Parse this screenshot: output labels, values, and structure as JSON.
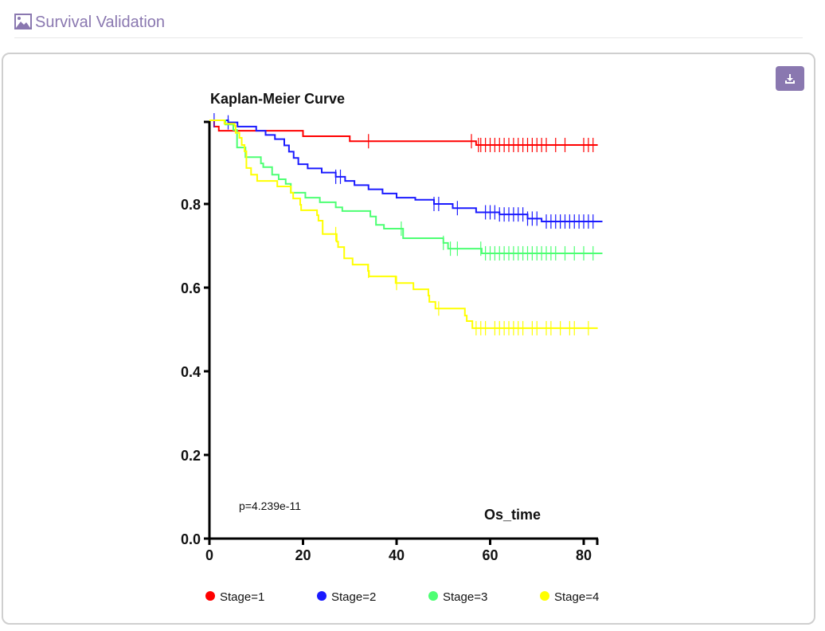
{
  "header": {
    "title": "Survival Validation",
    "icon": "image-icon"
  },
  "toolbar": {
    "download_icon": "download-icon"
  },
  "chart_data": {
    "type": "line",
    "title": "Kaplan-Meier Curve",
    "xlabel": "Os_time",
    "ylabel": "",
    "xlim": [
      0,
      83
    ],
    "ylim": [
      0,
      1
    ],
    "xticks": [
      "0",
      "20",
      "40",
      "60",
      "80"
    ],
    "yticks": [
      "0.0",
      "0.2",
      "0.4",
      "0.6",
      "0.8"
    ],
    "annotation": "p=4.239e-11",
    "legend_position": "bottom",
    "grid": false,
    "series": [
      {
        "name": "Stage=1",
        "color": "#ff0000",
        "steps": [
          [
            0,
            1
          ],
          [
            1,
            0.985
          ],
          [
            2,
            0.975
          ],
          [
            20,
            0.962
          ],
          [
            30,
            0.95
          ],
          [
            57,
            0.941
          ]
        ],
        "end": 83,
        "censors": [
          34,
          56,
          57.5,
          58,
          59,
          60,
          61,
          62,
          63,
          64,
          65,
          66,
          67,
          68,
          69,
          70,
          71,
          72,
          74,
          76,
          80,
          81,
          82
        ]
      },
      {
        "name": "Stage=2",
        "color": "#1a1aff",
        "steps": [
          [
            0,
            1
          ],
          [
            4,
            0.995
          ],
          [
            6,
            0.985
          ],
          [
            10,
            0.975
          ],
          [
            12,
            0.965
          ],
          [
            14,
            0.955
          ],
          [
            16,
            0.94
          ],
          [
            17,
            0.925
          ],
          [
            18,
            0.91
          ],
          [
            19,
            0.895
          ],
          [
            21,
            0.885
          ],
          [
            24,
            0.875
          ],
          [
            27,
            0.865
          ],
          [
            29,
            0.855
          ],
          [
            31,
            0.845
          ],
          [
            34,
            0.835
          ],
          [
            37,
            0.825
          ],
          [
            40,
            0.815
          ],
          [
            44,
            0.81
          ],
          [
            48,
            0.8
          ],
          [
            52,
            0.79
          ],
          [
            57,
            0.78
          ],
          [
            62,
            0.775
          ],
          [
            68,
            0.765
          ],
          [
            71,
            0.758
          ]
        ],
        "end": 84,
        "censors": [
          1,
          4,
          27,
          28,
          48,
          49,
          53,
          59,
          60,
          61,
          62,
          63,
          64,
          65,
          66,
          67,
          68,
          69,
          70,
          72,
          73,
          74,
          75,
          76,
          77,
          78,
          79,
          80,
          81,
          82
        ]
      },
      {
        "name": "Stage=3",
        "color": "#4dff73",
        "steps": [
          [
            0,
            1
          ],
          [
            3.4,
            0.99
          ],
          [
            5.1,
            0.977
          ],
          [
            5.9,
            0.935
          ],
          [
            7.7,
            0.912
          ],
          [
            11,
            0.897
          ],
          [
            11.5,
            0.888
          ],
          [
            13.4,
            0.87
          ],
          [
            14.8,
            0.859
          ],
          [
            16.3,
            0.848
          ],
          [
            17.4,
            0.827
          ],
          [
            20.5,
            0.815
          ],
          [
            23.6,
            0.804
          ],
          [
            27,
            0.792
          ],
          [
            28.4,
            0.783
          ],
          [
            34.4,
            0.77
          ],
          [
            35.6,
            0.75
          ],
          [
            37.3,
            0.741
          ],
          [
            41.4,
            0.718
          ],
          [
            50,
            0.707
          ],
          [
            51,
            0.693
          ],
          [
            58.2,
            0.682
          ]
        ],
        "end": 84,
        "censors": [
          41,
          50,
          51.5,
          53,
          58,
          59,
          60,
          61,
          62,
          63,
          64,
          65,
          66,
          67,
          68,
          69,
          70,
          71,
          72,
          73,
          74,
          76,
          78,
          80,
          82
        ]
      },
      {
        "name": "Stage=4",
        "color": "#ffff00",
        "steps": [
          [
            0,
            1
          ],
          [
            3.2,
            0.992
          ],
          [
            5.4,
            0.987
          ],
          [
            5.6,
            0.97
          ],
          [
            6.4,
            0.958
          ],
          [
            6.9,
            0.941
          ],
          [
            7.5,
            0.926
          ],
          [
            7.9,
            0.886
          ],
          [
            8.9,
            0.87
          ],
          [
            10.2,
            0.855
          ],
          [
            14.5,
            0.842
          ],
          [
            17.4,
            0.827
          ],
          [
            17.9,
            0.813
          ],
          [
            19.4,
            0.798
          ],
          [
            19.6,
            0.785
          ],
          [
            23,
            0.773
          ],
          [
            23.3,
            0.76
          ],
          [
            24.2,
            0.728
          ],
          [
            27.2,
            0.71
          ],
          [
            27.5,
            0.697
          ],
          [
            28.8,
            0.67
          ],
          [
            30.6,
            0.655
          ],
          [
            33.9,
            0.64
          ],
          [
            34.1,
            0.627
          ],
          [
            39.8,
            0.611
          ],
          [
            43.6,
            0.596
          ],
          [
            46.8,
            0.581
          ],
          [
            47,
            0.566
          ],
          [
            48.3,
            0.55
          ],
          [
            54.6,
            0.533
          ],
          [
            55,
            0.52
          ],
          [
            56.2,
            0.503
          ]
        ],
        "end": 83,
        "censors": [
          27,
          34,
          40,
          49,
          57,
          58,
          59,
          61,
          62,
          63,
          64,
          65,
          66,
          67,
          69,
          70,
          72,
          73,
          75,
          77,
          78,
          81
        ]
      }
    ]
  }
}
